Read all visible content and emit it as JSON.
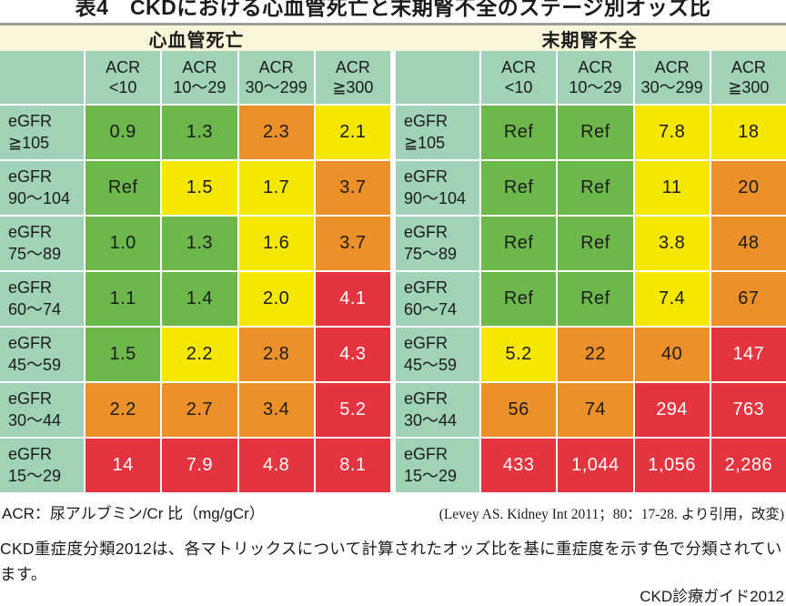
{
  "page": {
    "title": "表4　CKDにおける心血管死亡と末期腎不全のステージ別オッズ比",
    "footnote_acr": "ACR：尿アルブミン/Cr 比（mg/gCr）",
    "citation": "(Levey AS. Kidney Int 2011；80：17-28. より引用，改変)",
    "description": "CKD重症度分類2012は、各マトリックスについて計算されたオッズ比を基に重症度を示す色で分類されています。",
    "source": "CKD診療ガイド2012"
  },
  "colors": {
    "band-cream": "#f9f5d9",
    "header-teal": "#9fd2b6",
    "sev-green": "#6cb84a",
    "sev-yellow": "#f5e700",
    "sev-orange": "#ec9029",
    "sev-red": "#e43440"
  },
  "tables": [
    {
      "title": "心血管死亡",
      "col_headers": [
        "ACR\n<10",
        "ACR\n10〜29",
        "ACR\n30〜299",
        "ACR\n≧300"
      ],
      "rows": [
        {
          "label": "eGFR\n≧105",
          "cells": [
            {
              "value": "0.9",
              "level": "green"
            },
            {
              "value": "1.3",
              "level": "green"
            },
            {
              "value": "2.3",
              "level": "orange"
            },
            {
              "value": "2.1",
              "level": "yellow"
            }
          ]
        },
        {
          "label": "eGFR\n90〜104",
          "cells": [
            {
              "value": "Ref",
              "level": "green"
            },
            {
              "value": "1.5",
              "level": "yellow"
            },
            {
              "value": "1.7",
              "level": "yellow"
            },
            {
              "value": "3.7",
              "level": "orange"
            }
          ]
        },
        {
          "label": "eGFR\n75〜89",
          "cells": [
            {
              "value": "1.0",
              "level": "green"
            },
            {
              "value": "1.3",
              "level": "green"
            },
            {
              "value": "1.6",
              "level": "yellow"
            },
            {
              "value": "3.7",
              "level": "orange"
            }
          ]
        },
        {
          "label": "eGFR\n60〜74",
          "cells": [
            {
              "value": "1.1",
              "level": "green"
            },
            {
              "value": "1.4",
              "level": "green"
            },
            {
              "value": "2.0",
              "level": "yellow"
            },
            {
              "value": "4.1",
              "level": "red"
            }
          ]
        },
        {
          "label": "eGFR\n45〜59",
          "cells": [
            {
              "value": "1.5",
              "level": "green"
            },
            {
              "value": "2.2",
              "level": "yellow"
            },
            {
              "value": "2.8",
              "level": "orange"
            },
            {
              "value": "4.3",
              "level": "red"
            }
          ]
        },
        {
          "label": "eGFR\n30〜44",
          "cells": [
            {
              "value": "2.2",
              "level": "orange"
            },
            {
              "value": "2.7",
              "level": "orange"
            },
            {
              "value": "3.4",
              "level": "orange"
            },
            {
              "value": "5.2",
              "level": "red"
            }
          ]
        },
        {
          "label": "eGFR\n15〜29",
          "cells": [
            {
              "value": "14",
              "level": "red"
            },
            {
              "value": "7.9",
              "level": "red"
            },
            {
              "value": "4.8",
              "level": "red"
            },
            {
              "value": "8.1",
              "level": "red"
            }
          ]
        }
      ]
    },
    {
      "title": "末期腎不全",
      "col_headers": [
        "ACR\n<10",
        "ACR\n10〜29",
        "ACR\n30〜299",
        "ACR\n≧300"
      ],
      "rows": [
        {
          "label": "eGFR\n≧105",
          "cells": [
            {
              "value": "Ref",
              "level": "green"
            },
            {
              "value": "Ref",
              "level": "green"
            },
            {
              "value": "7.8",
              "level": "yellow"
            },
            {
              "value": "18",
              "level": "yellow"
            }
          ]
        },
        {
          "label": "eGFR\n90〜104",
          "cells": [
            {
              "value": "Ref",
              "level": "green"
            },
            {
              "value": "Ref",
              "level": "green"
            },
            {
              "value": "11",
              "level": "yellow"
            },
            {
              "value": "20",
              "level": "orange"
            }
          ]
        },
        {
          "label": "eGFR\n75〜89",
          "cells": [
            {
              "value": "Ref",
              "level": "green"
            },
            {
              "value": "Ref",
              "level": "green"
            },
            {
              "value": "3.8",
              "level": "yellow"
            },
            {
              "value": "48",
              "level": "orange"
            }
          ]
        },
        {
          "label": "eGFR\n60〜74",
          "cells": [
            {
              "value": "Ref",
              "level": "green"
            },
            {
              "value": "Ref",
              "level": "green"
            },
            {
              "value": "7.4",
              "level": "yellow"
            },
            {
              "value": "67",
              "level": "orange"
            }
          ]
        },
        {
          "label": "eGFR\n45〜59",
          "cells": [
            {
              "value": "5.2",
              "level": "yellow"
            },
            {
              "value": "22",
              "level": "orange"
            },
            {
              "value": "40",
              "level": "orange"
            },
            {
              "value": "147",
              "level": "red"
            }
          ]
        },
        {
          "label": "eGFR\n30〜44",
          "cells": [
            {
              "value": "56",
              "level": "orange"
            },
            {
              "value": "74",
              "level": "orange"
            },
            {
              "value": "294",
              "level": "red"
            },
            {
              "value": "763",
              "level": "red"
            }
          ]
        },
        {
          "label": "eGFR\n15〜29",
          "cells": [
            {
              "value": "433",
              "level": "red"
            },
            {
              "value": "1,044",
              "level": "red"
            },
            {
              "value": "1,056",
              "level": "red"
            },
            {
              "value": "2,286",
              "level": "red"
            }
          ]
        }
      ]
    }
  ]
}
